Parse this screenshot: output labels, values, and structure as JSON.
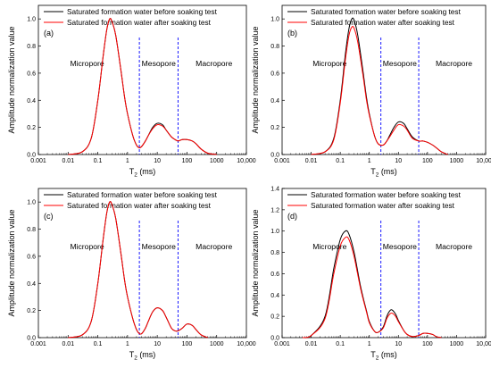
{
  "figure": {
    "xlabel_main": "T",
    "xlabel_sub": "2",
    "xlabel_unit": " (ms)",
    "ylabel": "Amplitude normalization value",
    "x_ticks": [
      "0.001",
      "0.01",
      "0.1",
      "1",
      "10",
      "100",
      "1000",
      "10,000"
    ],
    "y_ticks": [
      "0.0",
      "0.2",
      "0.4",
      "0.6",
      "0.8",
      "1.0"
    ],
    "y_ticks_d": [
      "0.0",
      "0.2",
      "0.4",
      "0.6",
      "0.8",
      "1.0",
      "1.2",
      "1.4"
    ],
    "region_labels": [
      "Micropore",
      "Mesopore",
      "Macropore"
    ],
    "colors": {
      "before": "#000000",
      "after": "#ff0000",
      "divider": "#0000ff"
    }
  },
  "chart_data": [
    {
      "type": "line",
      "panel": "(a)",
      "xscale": "log",
      "xlim": [
        0.001,
        10000
      ],
      "ylim": [
        0.0,
        1.1
      ],
      "xlabel": "T2 (ms)",
      "ylabel": "Amplitude normalization value",
      "legend": "top-right",
      "grid": false,
      "dividers_x": [
        2.5,
        50
      ],
      "series": [
        {
          "name": "Saturated formation water before soaking test",
          "x": [
            0.01,
            0.03,
            0.06,
            0.1,
            0.15,
            0.2,
            0.25,
            0.3,
            0.4,
            0.6,
            0.8,
            1,
            1.5,
            2,
            2.5,
            3,
            4,
            5,
            7,
            10,
            15,
            20,
            30,
            40,
            50,
            70,
            100,
            150,
            200,
            300,
            500,
            1000
          ],
          "y": [
            0.0,
            0.02,
            0.12,
            0.4,
            0.72,
            0.92,
            1.0,
            0.98,
            0.88,
            0.62,
            0.42,
            0.3,
            0.14,
            0.07,
            0.05,
            0.06,
            0.1,
            0.14,
            0.2,
            0.23,
            0.22,
            0.18,
            0.13,
            0.11,
            0.1,
            0.11,
            0.11,
            0.1,
            0.08,
            0.04,
            0.01,
            0.0
          ]
        },
        {
          "name": "Saturated formation water after soaking test",
          "x": [
            0.01,
            0.03,
            0.06,
            0.1,
            0.15,
            0.2,
            0.25,
            0.3,
            0.4,
            0.6,
            0.8,
            1,
            1.5,
            2,
            2.5,
            3,
            4,
            5,
            7,
            10,
            15,
            20,
            30,
            40,
            50,
            70,
            100,
            150,
            200,
            300,
            500,
            1000
          ],
          "y": [
            0.0,
            0.02,
            0.12,
            0.4,
            0.72,
            0.92,
            1.0,
            0.98,
            0.88,
            0.62,
            0.42,
            0.3,
            0.14,
            0.07,
            0.05,
            0.06,
            0.1,
            0.14,
            0.19,
            0.22,
            0.21,
            0.18,
            0.13,
            0.11,
            0.1,
            0.11,
            0.11,
            0.1,
            0.08,
            0.04,
            0.01,
            0.0
          ]
        }
      ]
    },
    {
      "type": "line",
      "panel": "(b)",
      "xscale": "log",
      "xlim": [
        0.001,
        10000
      ],
      "ylim": [
        0.0,
        1.1
      ],
      "xlabel": "T2 (ms)",
      "ylabel": "Amplitude normalization value",
      "legend": "top-right",
      "grid": false,
      "dividers_x": [
        2.5,
        50
      ],
      "series": [
        {
          "name": "Saturated formation water before soaking test",
          "x": [
            0.01,
            0.03,
            0.06,
            0.1,
            0.15,
            0.2,
            0.25,
            0.3,
            0.4,
            0.6,
            0.8,
            1,
            1.5,
            2,
            3,
            4,
            5,
            7,
            10,
            15,
            20,
            30,
            50,
            70,
            100,
            150,
            200,
            300,
            500
          ],
          "y": [
            0.0,
            0.02,
            0.12,
            0.4,
            0.74,
            0.93,
            1.0,
            0.99,
            0.88,
            0.62,
            0.42,
            0.3,
            0.14,
            0.08,
            0.07,
            0.1,
            0.14,
            0.2,
            0.24,
            0.23,
            0.19,
            0.13,
            0.1,
            0.1,
            0.09,
            0.07,
            0.05,
            0.02,
            0.0
          ]
        },
        {
          "name": "Saturated formation water after soaking test",
          "x": [
            0.01,
            0.03,
            0.06,
            0.1,
            0.15,
            0.2,
            0.25,
            0.3,
            0.4,
            0.6,
            0.8,
            1,
            1.5,
            2,
            3,
            4,
            5,
            7,
            10,
            15,
            20,
            30,
            50,
            70,
            100,
            150,
            200,
            300,
            500
          ],
          "y": [
            0.0,
            0.02,
            0.11,
            0.38,
            0.7,
            0.88,
            0.94,
            0.93,
            0.83,
            0.59,
            0.4,
            0.29,
            0.14,
            0.08,
            0.07,
            0.1,
            0.13,
            0.18,
            0.22,
            0.21,
            0.18,
            0.12,
            0.1,
            0.1,
            0.09,
            0.07,
            0.05,
            0.02,
            0.0
          ]
        }
      ]
    },
    {
      "type": "line",
      "panel": "(c)",
      "xscale": "log",
      "xlim": [
        0.001,
        10000
      ],
      "ylim": [
        0.0,
        1.1
      ],
      "xlabel": "T2 (ms)",
      "ylabel": "Amplitude normalization value",
      "legend": "top-right",
      "grid": false,
      "dividers_x": [
        2.5,
        50
      ],
      "series": [
        {
          "name": "Saturated formation water before soaking test",
          "x": [
            0.01,
            0.03,
            0.06,
            0.1,
            0.15,
            0.2,
            0.25,
            0.3,
            0.4,
            0.6,
            0.8,
            1,
            1.5,
            2,
            2.5,
            3,
            4,
            5,
            7,
            10,
            15,
            20,
            30,
            40,
            50,
            70,
            100,
            150,
            200,
            300,
            500
          ],
          "y": [
            0.0,
            0.02,
            0.12,
            0.4,
            0.72,
            0.92,
            1.0,
            0.98,
            0.88,
            0.62,
            0.42,
            0.3,
            0.14,
            0.06,
            0.03,
            0.03,
            0.07,
            0.12,
            0.19,
            0.22,
            0.2,
            0.15,
            0.07,
            0.05,
            0.05,
            0.07,
            0.1,
            0.09,
            0.06,
            0.02,
            0.0
          ]
        },
        {
          "name": "Saturated formation water after soaking test",
          "x": [
            0.01,
            0.03,
            0.06,
            0.1,
            0.15,
            0.2,
            0.25,
            0.3,
            0.4,
            0.6,
            0.8,
            1,
            1.5,
            2,
            2.5,
            3,
            4,
            5,
            7,
            10,
            15,
            20,
            30,
            40,
            50,
            70,
            100,
            150,
            200,
            300,
            500
          ],
          "y": [
            0.0,
            0.02,
            0.12,
            0.4,
            0.72,
            0.92,
            1.0,
            0.98,
            0.88,
            0.62,
            0.42,
            0.3,
            0.14,
            0.06,
            0.03,
            0.03,
            0.07,
            0.12,
            0.19,
            0.22,
            0.2,
            0.15,
            0.07,
            0.05,
            0.05,
            0.07,
            0.1,
            0.09,
            0.06,
            0.02,
            0.0
          ]
        }
      ]
    },
    {
      "type": "line",
      "panel": "(d)",
      "xscale": "log",
      "xlim": [
        0.001,
        10000
      ],
      "ylim": [
        0.0,
        1.4
      ],
      "xlabel": "T2 (ms)",
      "ylabel": "Amplitude normalization value",
      "legend": "top-right",
      "grid": false,
      "dividers_x": [
        2.5,
        50
      ],
      "series": [
        {
          "name": "Saturated formation water before soaking test",
          "x": [
            0.005,
            0.01,
            0.03,
            0.06,
            0.1,
            0.15,
            0.2,
            0.3,
            0.5,
            0.8,
            1,
            1.5,
            2,
            3,
            4,
            5,
            6,
            8,
            10,
            15,
            20,
            30,
            50,
            70,
            100,
            150,
            200,
            300
          ],
          "y": [
            0.0,
            0.02,
            0.2,
            0.65,
            0.92,
            1.0,
            0.97,
            0.8,
            0.48,
            0.25,
            0.15,
            0.06,
            0.05,
            0.1,
            0.2,
            0.25,
            0.26,
            0.22,
            0.16,
            0.07,
            0.03,
            0.01,
            0.02,
            0.04,
            0.04,
            0.03,
            0.01,
            0.0
          ]
        },
        {
          "name": "Saturated formation water after soaking test",
          "x": [
            0.005,
            0.01,
            0.03,
            0.06,
            0.1,
            0.15,
            0.2,
            0.3,
            0.5,
            0.8,
            1,
            1.5,
            2,
            3,
            4,
            5,
            6,
            8,
            10,
            15,
            20,
            30,
            50,
            70,
            100,
            150,
            200,
            300
          ],
          "y": [
            0.0,
            0.02,
            0.18,
            0.6,
            0.86,
            0.94,
            0.92,
            0.76,
            0.46,
            0.24,
            0.14,
            0.06,
            0.05,
            0.09,
            0.18,
            0.22,
            0.23,
            0.2,
            0.15,
            0.07,
            0.03,
            0.01,
            0.02,
            0.04,
            0.04,
            0.03,
            0.01,
            0.0
          ]
        }
      ]
    }
  ]
}
